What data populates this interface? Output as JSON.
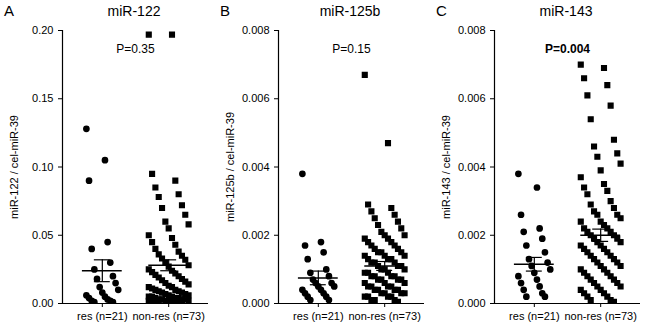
{
  "chart_data": [
    {
      "type": "scatter",
      "panel": "A",
      "title": "miR-122",
      "annotation": "P=0.35",
      "ylabel": "miR-122 / cel-miR-39",
      "categories": [
        "res (n=21)",
        "non-res (n=73)"
      ],
      "ylim": [
        0,
        0.2
      ],
      "yticks": [
        {
          "value": 0,
          "label": "0.00"
        },
        {
          "value": 0.05,
          "label": "0.05"
        },
        {
          "value": 0.1,
          "label": "0.10"
        },
        {
          "value": 0.15,
          "label": "0.15"
        },
        {
          "value": 0.2,
          "label": "0.20"
        }
      ],
      "groups": [
        {
          "marker": "circle",
          "color": "#000000",
          "mean": 0.024,
          "sem": 0.008,
          "values": [
            0.128,
            0.105,
            0.09,
            0.045,
            0.04,
            0.03,
            0.025,
            0.02,
            0.018,
            0.015,
            0.012,
            0.01,
            0.008,
            0.006,
            0.005,
            0.004,
            0.003,
            0.002,
            0.002,
            0.001,
            0.001
          ]
        },
        {
          "marker": "square",
          "color": "#000000",
          "mean": 0.028,
          "sem": 0.004,
          "values": [
            0.197,
            0.197,
            0.095,
            0.09,
            0.085,
            0.08,
            0.078,
            0.072,
            0.07,
            0.065,
            0.06,
            0.058,
            0.055,
            0.05,
            0.048,
            0.045,
            0.043,
            0.04,
            0.038,
            0.036,
            0.035,
            0.033,
            0.032,
            0.03,
            0.028,
            0.027,
            0.025,
            0.024,
            0.023,
            0.022,
            0.021,
            0.02,
            0.019,
            0.018,
            0.017,
            0.016,
            0.015,
            0.014,
            0.013,
            0.012,
            0.012,
            0.011,
            0.01,
            0.01,
            0.009,
            0.009,
            0.008,
            0.008,
            0.007,
            0.007,
            0.006,
            0.006,
            0.005,
            0.005,
            0.005,
            0.004,
            0.004,
            0.004,
            0.003,
            0.003,
            0.003,
            0.003,
            0.002,
            0.002,
            0.002,
            0.002,
            0.001,
            0.001,
            0.001,
            0.001,
            0.001,
            0.0005,
            0.0005
          ]
        }
      ]
    },
    {
      "type": "scatter",
      "panel": "B",
      "title": "miR-125b",
      "annotation": "P=0.15",
      "ylabel": "miR-125b / cel-miR-39",
      "categories": [
        "res (n=21)",
        "non-res (n=73)"
      ],
      "ylim": [
        0,
        0.008
      ],
      "yticks": [
        {
          "value": 0,
          "label": "0.000"
        },
        {
          "value": 0.002,
          "label": "0.002"
        },
        {
          "value": 0.004,
          "label": "0.004"
        },
        {
          "value": 0.006,
          "label": "0.006"
        },
        {
          "value": 0.008,
          "label": "0.008"
        }
      ],
      "groups": [
        {
          "marker": "circle",
          "color": "#000000",
          "mean": 0.00075,
          "sem": 0.0002,
          "values": [
            0.0038,
            0.0018,
            0.0017,
            0.0015,
            0.0013,
            0.001,
            0.0009,
            0.0008,
            0.0007,
            0.0006,
            0.0006,
            0.0005,
            0.0005,
            0.0004,
            0.0004,
            0.0003,
            0.0003,
            0.0002,
            0.0002,
            0.0001,
            0.0001
          ]
        },
        {
          "marker": "square",
          "color": "#000000",
          "mean": 0.0011,
          "sem": 0.00013,
          "values": [
            0.0067,
            0.0047,
            0.0029,
            0.0028,
            0.0027,
            0.0026,
            0.0025,
            0.0024,
            0.0023,
            0.0022,
            0.0021,
            0.002,
            0.002,
            0.0019,
            0.0019,
            0.0018,
            0.0018,
            0.0017,
            0.0017,
            0.0016,
            0.0016,
            0.0015,
            0.0015,
            0.0015,
            0.0014,
            0.0014,
            0.0014,
            0.0013,
            0.0013,
            0.0013,
            0.0012,
            0.0012,
            0.0012,
            0.0011,
            0.0011,
            0.0011,
            0.001,
            0.001,
            0.001,
            0.0009,
            0.0009,
            0.0009,
            0.0008,
            0.0008,
            0.0008,
            0.0008,
            0.0007,
            0.0007,
            0.0007,
            0.0007,
            0.0006,
            0.0006,
            0.0006,
            0.0005,
            0.0005,
            0.0005,
            0.0005,
            0.0004,
            0.0004,
            0.0004,
            0.0004,
            0.0003,
            0.0003,
            0.0003,
            0.0003,
            0.0002,
            0.0002,
            0.0002,
            0.0002,
            0.0001,
            0.0001,
            0.0001,
            5e-05
          ]
        }
      ]
    },
    {
      "type": "scatter",
      "panel": "C",
      "title": "miR-143",
      "annotation": "P=0.004",
      "ylabel": "miR-143 / cel-miR-39",
      "categories": [
        "res (n=21)",
        "non-res (n=73)"
      ],
      "ylim": [
        0,
        0.008
      ],
      "yticks": [
        {
          "value": 0,
          "label": "0.000"
        },
        {
          "value": 0.002,
          "label": "0.002"
        },
        {
          "value": 0.004,
          "label": "0.004"
        },
        {
          "value": 0.006,
          "label": "0.006"
        },
        {
          "value": 0.008,
          "label": "0.008"
        }
      ],
      "groups": [
        {
          "marker": "circle",
          "color": "#000000",
          "mean": 0.00115,
          "sem": 0.0002,
          "values": [
            0.0038,
            0.0034,
            0.0026,
            0.0022,
            0.0021,
            0.0019,
            0.0017,
            0.0015,
            0.0013,
            0.0012,
            0.0011,
            0.001,
            0.0009,
            0.0008,
            0.0007,
            0.0006,
            0.0005,
            0.0004,
            0.0003,
            0.0002,
            0.0002
          ]
        },
        {
          "marker": "square",
          "color": "#000000",
          "mean": 0.002,
          "sem": 0.00018,
          "values": [
            0.007,
            0.0069,
            0.0066,
            0.0064,
            0.0061,
            0.0058,
            0.0054,
            0.0048,
            0.0046,
            0.0044,
            0.0043,
            0.0041,
            0.0039,
            0.0037,
            0.0035,
            0.0034,
            0.0033,
            0.0032,
            0.003,
            0.0029,
            0.0028,
            0.0027,
            0.0026,
            0.0026,
            0.0025,
            0.0024,
            0.0024,
            0.0023,
            0.0022,
            0.0022,
            0.0021,
            0.0021,
            0.002,
            0.002,
            0.0019,
            0.0019,
            0.0018,
            0.0018,
            0.0017,
            0.0017,
            0.0016,
            0.0016,
            0.0015,
            0.0015,
            0.0014,
            0.0014,
            0.0013,
            0.0013,
            0.0012,
            0.0012,
            0.0011,
            0.0011,
            0.001,
            0.001,
            0.0009,
            0.0009,
            0.0008,
            0.0008,
            0.0007,
            0.0007,
            0.0006,
            0.0006,
            0.0005,
            0.0005,
            0.0004,
            0.0004,
            0.0003,
            0.0003,
            0.0002,
            0.0002,
            0.0001,
            0.0001,
            5e-05
          ]
        }
      ]
    }
  ]
}
